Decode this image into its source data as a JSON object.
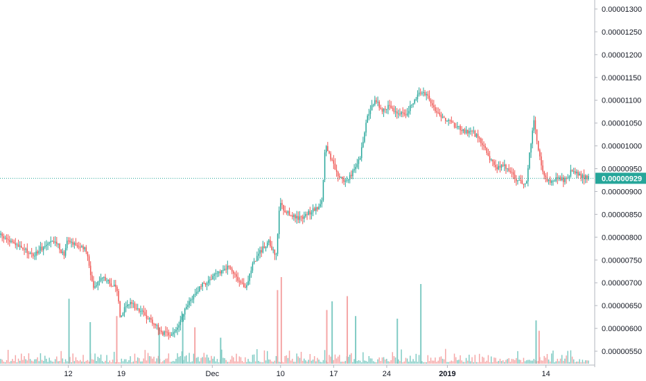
{
  "chart_data": {
    "type": "candlestick",
    "title": "",
    "xlabel": "",
    "ylabel": "",
    "ylim": [
      5.25e-06,
      1.31e-05
    ],
    "colors": {
      "up": "#26a69a",
      "down": "#ef5350",
      "up_volume": "#80cbc4",
      "down_volume": "#f5a6a6",
      "axis": "#131722",
      "current_line": "#26a69a"
    },
    "y_ticks": [
      "0.00001300",
      "0.00001250",
      "0.00001200",
      "0.00001150",
      "0.00001100",
      "0.00001050",
      "0.00001000",
      "0.00000950",
      "0.00000900",
      "0.00000850",
      "0.00000800",
      "0.00000750",
      "0.00000700",
      "0.00000650",
      "0.00000600",
      "0.00000550"
    ],
    "x_labels": [
      {
        "label": "12",
        "day": 7.5,
        "bold": false
      },
      {
        "label": "19",
        "day": 14.5,
        "bold": false
      },
      {
        "label": "Dec",
        "day": 26.5,
        "bold": false
      },
      {
        "label": "10",
        "day": 35.5,
        "bold": false
      },
      {
        "label": "17",
        "day": 42.5,
        "bold": false
      },
      {
        "label": "24",
        "day": 49.5,
        "bold": false
      },
      {
        "label": "2019",
        "day": 57.5,
        "bold": true
      },
      {
        "label": "14",
        "day": 70.5,
        "bold": false
      }
    ],
    "day_range": [
      -1.5,
      76.2
    ],
    "current_price": {
      "label": "0.00000929",
      "value": 9.29e-06
    },
    "price_path": [
      [
        -1.5,
        805
      ],
      [
        0,
        790
      ],
      [
        2,
        770
      ],
      [
        3,
        760
      ],
      [
        4,
        775
      ],
      [
        5,
        785
      ],
      [
        6,
        790
      ],
      [
        7,
        760
      ],
      [
        7.5,
        800
      ],
      [
        8,
        790
      ],
      [
        9,
        780
      ],
      [
        10,
        770
      ],
      [
        10.5,
        720
      ],
      [
        11,
        690
      ],
      [
        12,
        715
      ],
      [
        13,
        700
      ],
      [
        14,
        690
      ],
      [
        14.5,
        620
      ],
      [
        15,
        650
      ],
      [
        16,
        655
      ],
      [
        17,
        640
      ],
      [
        18,
        625
      ],
      [
        19,
        610
      ],
      [
        20,
        590
      ],
      [
        21,
        585
      ],
      [
        22,
        600
      ],
      [
        23,
        640
      ],
      [
        24,
        670
      ],
      [
        25,
        690
      ],
      [
        26,
        705
      ],
      [
        27,
        715
      ],
      [
        28,
        730
      ],
      [
        29,
        735
      ],
      [
        30,
        700
      ],
      [
        31,
        690
      ],
      [
        32,
        745
      ],
      [
        33,
        770
      ],
      [
        34,
        790
      ],
      [
        35,
        755
      ],
      [
        35.5,
        880
      ],
      [
        36,
        860
      ],
      [
        37,
        850
      ],
      [
        38,
        840
      ],
      [
        39,
        850
      ],
      [
        40,
        860
      ],
      [
        41,
        870
      ],
      [
        41.5,
        1000
      ],
      [
        42,
        980
      ],
      [
        43,
        940
      ],
      [
        44,
        920
      ],
      [
        45,
        940
      ],
      [
        46,
        970
      ],
      [
        47,
        1060
      ],
      [
        48,
        1100
      ],
      [
        49,
        1080
      ],
      [
        50,
        1090
      ],
      [
        51,
        1070
      ],
      [
        52,
        1070
      ],
      [
        53,
        1090
      ],
      [
        54,
        1120
      ],
      [
        55,
        1110
      ],
      [
        56,
        1080
      ],
      [
        57,
        1060
      ],
      [
        58,
        1050
      ],
      [
        59,
        1040
      ],
      [
        60,
        1030
      ],
      [
        61,
        1030
      ],
      [
        62,
        1010
      ],
      [
        63,
        980
      ],
      [
        64,
        950
      ],
      [
        65,
        960
      ],
      [
        66,
        940
      ],
      [
        67,
        920
      ],
      [
        68,
        920
      ],
      [
        69,
        1060
      ],
      [
        70,
        950
      ],
      [
        71,
        920
      ],
      [
        72,
        930
      ],
      [
        73,
        925
      ],
      [
        74,
        945
      ],
      [
        75,
        935
      ],
      [
        76.2,
        929
      ]
    ],
    "volume_spikes": [
      {
        "day": 7.6,
        "value": 0.75,
        "up": true
      },
      {
        "day": 10.4,
        "value": 0.48,
        "up": true
      },
      {
        "day": 13.9,
        "value": 0.55,
        "up": false
      },
      {
        "day": 19.5,
        "value": 0.42,
        "up": true
      },
      {
        "day": 22.6,
        "value": 0.58,
        "up": true
      },
      {
        "day": 24.2,
        "value": 0.42,
        "up": false
      },
      {
        "day": 27.6,
        "value": 0.3,
        "up": true
      },
      {
        "day": 35.1,
        "value": 0.85,
        "up": false
      },
      {
        "day": 35.6,
        "value": 1.0,
        "up": false
      },
      {
        "day": 41.6,
        "value": 0.62,
        "up": false
      },
      {
        "day": 42.3,
        "value": 0.72,
        "up": true
      },
      {
        "day": 44.3,
        "value": 0.78,
        "up": false
      },
      {
        "day": 45.4,
        "value": 0.55,
        "up": true
      },
      {
        "day": 50.9,
        "value": 0.52,
        "up": true
      },
      {
        "day": 54.0,
        "value": 0.92,
        "up": true
      },
      {
        "day": 69.2,
        "value": 0.5,
        "up": true
      },
      {
        "day": 69.6,
        "value": 0.38,
        "up": false
      }
    ]
  }
}
